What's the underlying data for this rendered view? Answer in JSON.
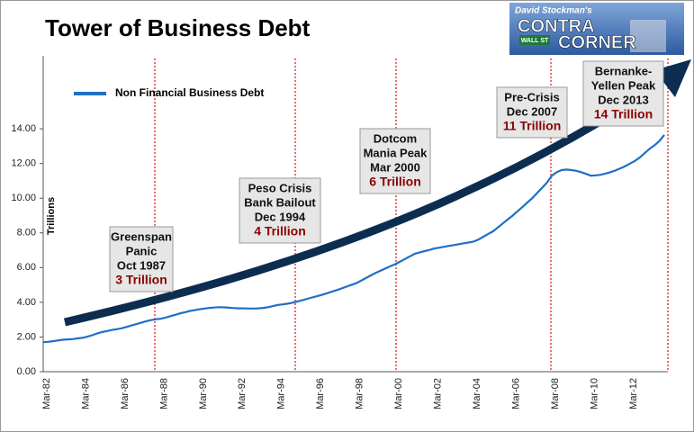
{
  "chart_data": {
    "type": "line",
    "title": "Tower of Business Debt",
    "y_label": "Trillions",
    "logo": {
      "top": "David Stockman's",
      "sign": "WALL ST",
      "main": [
        "CONTRA",
        "CORNER"
      ]
    },
    "categories": [
      "Mar-82",
      null,
      null,
      null,
      null,
      null,
      null,
      null,
      "Mar-84",
      null,
      null,
      null,
      null,
      null,
      null,
      null,
      "Mar-86",
      null,
      null,
      null,
      null,
      null,
      null,
      null,
      "Mar-88",
      null,
      null,
      null,
      null,
      null,
      null,
      null,
      "Mar-90",
      null,
      null,
      null,
      null,
      null,
      null,
      null,
      "Mar-92",
      null,
      null,
      null,
      null,
      null,
      null,
      null,
      "Mar-94",
      null,
      null,
      null,
      null,
      null,
      null,
      null,
      "Mar-96",
      null,
      null,
      null,
      null,
      null,
      null,
      null,
      "Mar-98",
      null,
      null,
      null,
      null,
      null,
      null,
      null,
      "Mar-00",
      null,
      null,
      null,
      null,
      null,
      null,
      null,
      "Mar-02",
      null,
      null,
      null,
      null,
      null,
      null,
      null,
      "Mar-04",
      null,
      null,
      null,
      null,
      null,
      null,
      null,
      "Mar-06",
      null,
      null,
      null,
      null,
      null,
      null,
      null,
      "Mar-08",
      null,
      null,
      null,
      null,
      null,
      null,
      null,
      "Mar-10",
      null,
      null,
      null,
      null,
      null,
      null,
      null,
      "Mar-12",
      null,
      null,
      null,
      null,
      null,
      null,
      null
    ],
    "series": [
      {
        "name": "Non Financial Business Debt",
        "color": "#1f6fc5",
        "values": [
          1.7,
          1.72,
          1.76,
          1.8,
          1.84,
          1.86,
          1.88,
          1.92,
          1.95,
          2.02,
          2.1,
          2.2,
          2.28,
          2.34,
          2.4,
          2.45,
          2.5,
          2.58,
          2.66,
          2.74,
          2.82,
          2.9,
          2.97,
          3.02,
          3.05,
          3.12,
          3.2,
          3.28,
          3.36,
          3.43,
          3.5,
          3.55,
          3.6,
          3.64,
          3.68,
          3.7,
          3.72,
          3.71,
          3.69,
          3.67,
          3.65,
          3.65,
          3.64,
          3.64,
          3.65,
          3.68,
          3.72,
          3.78,
          3.85,
          3.88,
          3.92,
          3.98,
          4.05,
          4.12,
          4.2,
          4.28,
          4.35,
          4.43,
          4.52,
          4.61,
          4.7,
          4.8,
          4.9,
          5.0,
          5.1,
          5.25,
          5.4,
          5.55,
          5.7,
          5.82,
          5.95,
          6.08,
          6.2,
          6.35,
          6.5,
          6.65,
          6.8,
          6.88,
          6.95,
          7.02,
          7.1,
          7.15,
          7.2,
          7.25,
          7.3,
          7.35,
          7.4,
          7.45,
          7.5,
          7.62,
          7.78,
          7.94,
          8.1,
          8.32,
          8.55,
          8.78,
          9.0,
          9.25,
          9.5,
          9.75,
          10.0,
          10.3,
          10.6,
          10.9,
          11.3,
          11.5,
          11.62,
          11.65,
          11.62,
          11.58,
          11.5,
          11.4,
          11.3,
          11.32,
          11.35,
          11.42,
          11.5,
          11.6,
          11.72,
          11.85,
          12.0,
          12.15,
          12.35,
          12.6,
          12.85,
          13.05,
          13.3,
          13.65
        ]
      }
    ],
    "ylim": [
      0,
      18
    ],
    "yticks": [
      {
        "value": 0,
        "label": "0.00"
      },
      {
        "value": 2,
        "label": "2.00"
      },
      {
        "value": 4,
        "label": "4.00"
      },
      {
        "value": 6,
        "label": "6.00"
      },
      {
        "value": 8,
        "label": "8.00"
      },
      {
        "value": 10,
        "label": "10.00"
      },
      {
        "value": 12,
        "label": "12.00"
      },
      {
        "value": 14,
        "label": "14.00"
      }
    ],
    "legend": "upper left",
    "annotations": [
      {
        "lines": [
          "Greenspan",
          "Panic",
          "Oct 1987"
        ],
        "amount": "3 Trillion"
      },
      {
        "lines": [
          "Peso Crisis",
          "Bank Bailout",
          "Dec 1994"
        ],
        "amount": "4 Trillion"
      },
      {
        "lines": [
          "Dotcom",
          "Mania Peak",
          "Mar 2000"
        ],
        "amount": "6 Trillion"
      },
      {
        "lines": [
          "Pre-Crisis",
          "Dec 2007"
        ],
        "amount": "11 Trillion"
      },
      {
        "lines": [
          "Bernanke-",
          "Yellen Peak",
          "Dec 2013"
        ],
        "amount": "14 Trillion"
      }
    ]
  }
}
